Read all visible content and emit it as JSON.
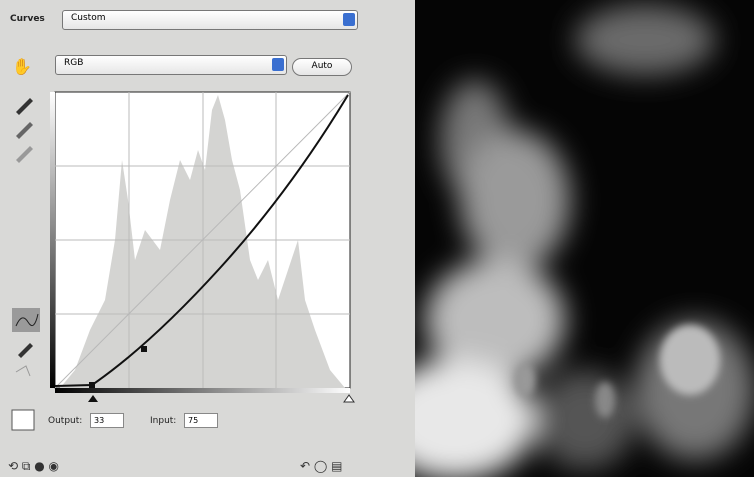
{
  "panel": {
    "title": "Curves",
    "preset": "Custom",
    "channel": "RGB",
    "auto_button": "Auto",
    "output": {
      "label": "Output:",
      "value": "33"
    },
    "input": {
      "label": "Input:",
      "value": "75"
    }
  }
}
